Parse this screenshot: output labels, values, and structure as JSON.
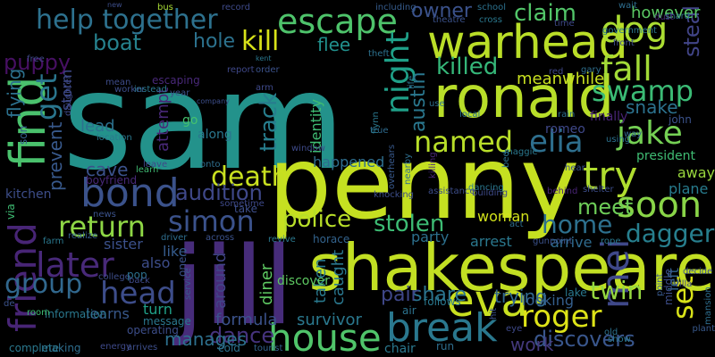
{
  "words": [
    {
      "text": "sam",
      "color": "#23928b"
    },
    {
      "text": "penny",
      "color": "#c5e021"
    },
    {
      "text": "jill",
      "color": "#472c7a"
    },
    {
      "text": "shakespeare",
      "color": "#c2df23"
    },
    {
      "text": "ronald",
      "color": "#b8de29"
    },
    {
      "text": "warhead",
      "color": "#bade28"
    },
    {
      "text": "find",
      "color": "#4ac16d"
    },
    {
      "text": "bond",
      "color": "#3b528b"
    },
    {
      "text": "eva",
      "color": "#c8e020"
    },
    {
      "text": "break",
      "color": "#2a788e"
    },
    {
      "text": "house",
      "color": "#50c46a"
    },
    {
      "text": "friend",
      "color": "#482576"
    },
    {
      "text": "escape",
      "color": "#4ec36b"
    },
    {
      "text": "help together",
      "color": "#2d718e"
    },
    {
      "text": "dog",
      "color": "#aadc32"
    },
    {
      "text": "fall",
      "color": "#a2da37"
    },
    {
      "text": "swamp",
      "color": "#3bbb75"
    },
    {
      "text": "jake",
      "color": "#75d054"
    },
    {
      "text": "elia",
      "color": "#2e6f8e"
    },
    {
      "text": "try",
      "color": "#b0dd2f"
    },
    {
      "text": "named",
      "color": "#b8de29"
    },
    {
      "text": "soon",
      "color": "#89d548"
    },
    {
      "text": "mei",
      "color": "#3f4889"
    },
    {
      "text": "roger",
      "color": "#dde318"
    },
    {
      "text": "later",
      "color": "#482979"
    },
    {
      "text": "group",
      "color": "#31688e"
    },
    {
      "text": "head",
      "color": "#3d4d8a"
    },
    {
      "text": "simon",
      "color": "#3b528b"
    },
    {
      "text": "return",
      "color": "#8ed645"
    },
    {
      "text": "death",
      "color": "#c8e020"
    },
    {
      "text": "kill",
      "color": "#d8e219"
    },
    {
      "text": "get",
      "color": "#2a768e"
    },
    {
      "text": "night",
      "color": "#1fa088"
    },
    {
      "text": "killed",
      "color": "#35b779"
    },
    {
      "text": "home",
      "color": "#2d708e"
    },
    {
      "text": "police",
      "color": "#b8de29"
    },
    {
      "text": "stolen",
      "color": "#3dbc74"
    },
    {
      "text": "twin",
      "color": "#95d840"
    },
    {
      "text": "set",
      "color": "#d8e219"
    },
    {
      "text": "dagger",
      "color": "#277f8e"
    },
    {
      "text": "track",
      "color": "#277e8e"
    },
    {
      "text": "audition",
      "color": "#3f4889"
    },
    {
      "text": "dance",
      "color": "#46337e"
    },
    {
      "text": "discovers",
      "color": "#39568c"
    },
    {
      "text": "claim",
      "color": "#52c569"
    },
    {
      "text": "owner",
      "color": "#3b528b"
    },
    {
      "text": "boat",
      "color": "#26828e"
    },
    {
      "text": "puppy",
      "color": "#471063"
    },
    {
      "text": "hole",
      "color": "#2c728e"
    },
    {
      "text": "flee",
      "color": "#21908d"
    },
    {
      "text": "meet",
      "color": "#6ece58"
    },
    {
      "text": "snake",
      "color": "#2c728e"
    },
    {
      "text": "austin",
      "color": "#2a778e"
    },
    {
      "text": "share",
      "color": "#2b748e"
    },
    {
      "text": "trying",
      "color": "#31688e"
    },
    {
      "text": "meanwhile",
      "color": "#c8e020"
    },
    {
      "text": "steal",
      "color": "#414487"
    },
    {
      "text": "however",
      "color": "#5ac864"
    },
    {
      "text": "flying",
      "color": "#2c718e"
    },
    {
      "text": "cave",
      "color": "#3b528b"
    },
    {
      "text": "work",
      "color": "#44397d"
    },
    {
      "text": "pair",
      "color": "#3f4788"
    },
    {
      "text": "manages",
      "color": "#2d708e"
    },
    {
      "text": "diner",
      "color": "#5ec962"
    },
    {
      "text": "around",
      "color": "#414487"
    },
    {
      "text": "taken",
      "color": "#29798e"
    },
    {
      "text": "caught",
      "color": "#2a778e"
    },
    {
      "text": "attempt",
      "color": "#482878"
    },
    {
      "text": "lead",
      "color": "#2c718e"
    },
    {
      "text": "identity",
      "color": "#3fbc73"
    },
    {
      "text": "happened",
      "color": "#2e6e8e"
    },
    {
      "text": "woman",
      "color": "#d2e21b"
    },
    {
      "text": "survivor",
      "color": "#2a788e"
    },
    {
      "text": "formula",
      "color": "#3b528b"
    },
    {
      "text": "like",
      "color": "#365c8d"
    },
    {
      "text": "also",
      "color": "#3d4d8a"
    },
    {
      "text": "sister",
      "color": "#3b518b"
    },
    {
      "text": "learns",
      "color": "#38598c"
    },
    {
      "text": "turn",
      "color": "#1fa088"
    },
    {
      "text": "looking",
      "color": "#355f8d"
    },
    {
      "text": "party",
      "color": "#2d708e"
    },
    {
      "text": "arrest",
      "color": "#2a788e"
    },
    {
      "text": "left",
      "color": "#32658e"
    },
    {
      "text": "away",
      "color": "#99d83d"
    },
    {
      "text": "plane",
      "color": "#287c8e"
    },
    {
      "text": "arrive",
      "color": "#2f6b8e"
    },
    {
      "text": "president",
      "color": "#3fbc73"
    },
    {
      "text": "storm",
      "color": "#3e4989"
    },
    {
      "text": "go",
      "color": "#45c16d"
    },
    {
      "text": "along",
      "color": "#2a778e"
    },
    {
      "text": "bus",
      "color": "#a8db34"
    },
    {
      "text": "record",
      "color": "#3e4a89"
    },
    {
      "text": "including",
      "color": "#365c8d"
    },
    {
      "text": "theatre",
      "color": "#3b528b"
    },
    {
      "text": "school",
      "color": "#2c718e"
    },
    {
      "text": "cross",
      "color": "#2a788e"
    },
    {
      "text": "wait",
      "color": "#2e6d8e"
    },
    {
      "text": "shard",
      "color": "#2e6e8e"
    },
    {
      "text": "dust",
      "color": "#482475"
    },
    {
      "text": "government",
      "color": "#2a788e"
    },
    {
      "text": "front",
      "color": "#3d4e8a"
    },
    {
      "text": "free",
      "color": "#3e4989"
    },
    {
      "text": "daughter",
      "color": "#3e4a89"
    },
    {
      "text": "mean",
      "color": "#3e4c8a"
    },
    {
      "text": "escaping",
      "color": "#482878"
    },
    {
      "text": "report",
      "color": "#3f4889"
    },
    {
      "text": "order",
      "color": "#3b528b"
    },
    {
      "text": "theft",
      "color": "#2c718e"
    },
    {
      "text": "gary",
      "color": "#2e6f8e"
    },
    {
      "text": "red",
      "color": "#3f4788"
    },
    {
      "text": "worker",
      "color": "#3d4e8a"
    },
    {
      "text": "instead",
      "color": "#2a788e"
    },
    {
      "text": "year",
      "color": "#3b528b"
    },
    {
      "text": "arm",
      "color": "#3e4989"
    },
    {
      "text": "life",
      "color": "#2c728e"
    },
    {
      "text": "use",
      "color": "#2d708e"
    },
    {
      "text": "rain",
      "color": "#2e6e8e"
    },
    {
      "text": "john",
      "color": "#3b528b"
    },
    {
      "text": "finally",
      "color": "#482475"
    },
    {
      "text": "romeo",
      "color": "#3f4889"
    },
    {
      "text": "way",
      "color": "#33638d"
    },
    {
      "text": "hear",
      "color": "#3b528b"
    },
    {
      "text": "maggie",
      "color": "#2a788e"
    },
    {
      "text": "local",
      "color": "#2c728e"
    },
    {
      "text": "true",
      "color": "#2f6b8e"
    },
    {
      "text": "flynn",
      "color": "#2a788e"
    },
    {
      "text": "leave",
      "color": "#3f4889"
    },
    {
      "text": "onto",
      "color": "#2e6e8e"
    },
    {
      "text": "window",
      "color": "#3e4a89"
    },
    {
      "text": "location",
      "color": "#2a788e"
    },
    {
      "text": "son",
      "color": "#355f8d"
    },
    {
      "text": "prevent",
      "color": "#38598c"
    },
    {
      "text": "kitchen",
      "color": "#3d4e8a"
    },
    {
      "text": "boyfriend",
      "color": "#482878"
    },
    {
      "text": "learn",
      "color": "#3fbc73"
    },
    {
      "text": "sometime",
      "color": "#3e4989"
    },
    {
      "text": "take",
      "color": "#3d4e8a"
    },
    {
      "text": "news",
      "color": "#3b528b"
    },
    {
      "text": "realize",
      "color": "#355f8d"
    },
    {
      "text": "farm",
      "color": "#2a788e"
    },
    {
      "text": "driver",
      "color": "#2e6e8e"
    },
    {
      "text": "across",
      "color": "#3b528b"
    },
    {
      "text": "revive",
      "color": "#2a788e"
    },
    {
      "text": "horace",
      "color": "#33638d"
    },
    {
      "text": "knocking",
      "color": "#3d4e8a"
    },
    {
      "text": "overhears",
      "color": "#38598c"
    },
    {
      "text": "nearby",
      "color": "#2e6e8e"
    },
    {
      "text": "assistance",
      "color": "#3d4e8a"
    },
    {
      "text": "killing",
      "color": "#482878"
    },
    {
      "text": "dancing",
      "color": "#2a788e"
    },
    {
      "text": "building",
      "color": "#3e4a89"
    },
    {
      "text": "bed",
      "color": "#2c718e"
    },
    {
      "text": "act",
      "color": "#2e6e8e"
    },
    {
      "text": "gunpoint",
      "color": "#3b528b"
    },
    {
      "text": "rope",
      "color": "#2a788e"
    },
    {
      "text": "behind",
      "color": "#482475"
    },
    {
      "text": "shelter",
      "color": "#3d4e8a"
    },
    {
      "text": "using",
      "color": "#2c728e"
    },
    {
      "text": "plant",
      "color": "#38598c"
    },
    {
      "text": "via",
      "color": "#3fbc73"
    },
    {
      "text": "de",
      "color": "#3b528b"
    },
    {
      "text": "information",
      "color": "#2a788e"
    },
    {
      "text": "college",
      "color": "#3d4e8a"
    },
    {
      "text": "pop",
      "color": "#2c718e"
    },
    {
      "text": "back",
      "color": "#3e4989"
    },
    {
      "text": "one",
      "color": "#3b528b"
    },
    {
      "text": "service",
      "color": "#38598c"
    },
    {
      "text": "message",
      "color": "#2a788e"
    },
    {
      "text": "operating",
      "color": "#3d4e8a"
    },
    {
      "text": "room",
      "color": "#3fbc73"
    },
    {
      "text": "making",
      "color": "#2e6e8e"
    },
    {
      "text": "energy",
      "color": "#3e4989"
    },
    {
      "text": "arrives",
      "color": "#3d4e8a"
    },
    {
      "text": "cold",
      "color": "#2c718e"
    },
    {
      "text": "tourist",
      "color": "#33638d"
    },
    {
      "text": "discover",
      "color": "#5ec962"
    },
    {
      "text": "chair",
      "color": "#2a788e"
    },
    {
      "text": "run",
      "color": "#2e6e8e"
    },
    {
      "text": "air",
      "color": "#2c728e"
    },
    {
      "text": "follows",
      "color": "#2a788e"
    },
    {
      "text": "hit",
      "color": "#3b528b"
    },
    {
      "text": "eye",
      "color": "#3e4989"
    },
    {
      "text": "lake",
      "color": "#2a788e"
    },
    {
      "text": "middle",
      "color": "#3d4e8a"
    },
    {
      "text": "old",
      "color": "#2c718e"
    },
    {
      "text": "point",
      "color": "#38598c"
    },
    {
      "text": "mansion",
      "color": "#2e6e8e"
    },
    {
      "text": "villa",
      "color": "#3e4989"
    },
    {
      "text": "decide",
      "color": "#3b528b"
    },
    {
      "text": "complete",
      "color": "#2a788e"
    },
    {
      "text": "new",
      "color": "#3d4e8a"
    },
    {
      "text": "kent",
      "color": "#2a788e"
    },
    {
      "text": "company",
      "color": "#3d4e8a"
    },
    {
      "text": "time",
      "color": "#3e4989"
    },
    {
      "text": "show",
      "color": "#2a788e"
    },
    {
      "text": "retrieve",
      "color": "#3b528b"
    },
    {
      "text": "mission",
      "color": "#2c718e"
    }
  ]
}
